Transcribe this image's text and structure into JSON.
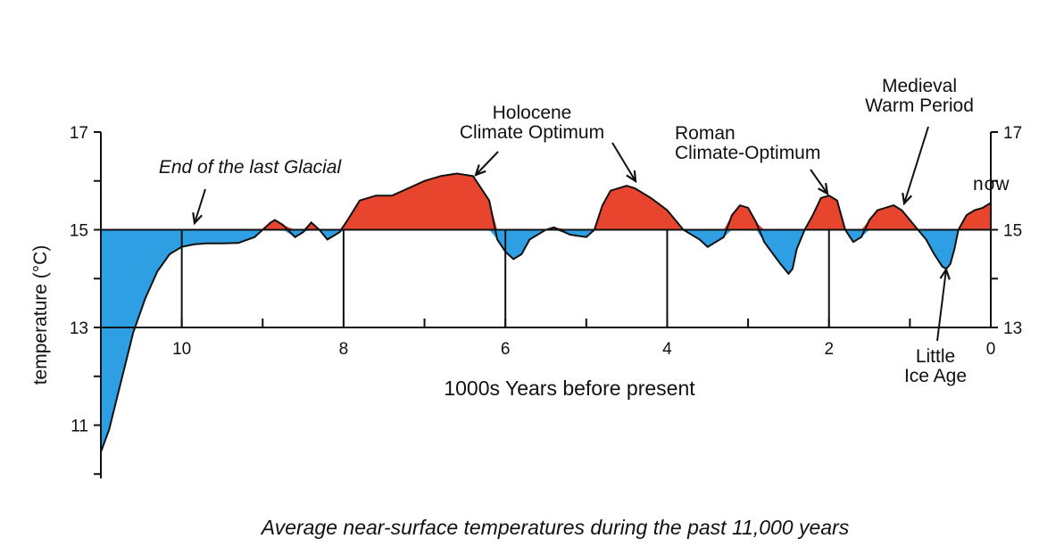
{
  "chart_data": {
    "type": "area",
    "title": "",
    "caption": "Average near-surface temperatures during the past 11,000 years",
    "xlabel": "1000s Years before present",
    "ylabel": "temperature (°C)",
    "baseline": 15,
    "xlim": [
      11,
      0
    ],
    "ylim": [
      10,
      17
    ],
    "x_ticks": [
      10,
      8,
      6,
      4,
      2,
      0
    ],
    "y_ticks_left": [
      17,
      15,
      13,
      11
    ],
    "y_ticks_right": [
      17,
      15,
      13
    ],
    "colors": {
      "above": "#e8452f",
      "below": "#2f9fe3",
      "line": "#111111"
    },
    "series": [
      {
        "x": [
          11.0,
          10.9,
          10.75,
          10.6,
          10.45,
          10.3,
          10.15,
          10.0,
          9.85,
          9.7,
          9.5,
          9.3,
          9.1,
          9.0,
          8.9,
          8.85,
          8.75,
          8.6,
          8.5,
          8.4,
          8.3,
          8.2,
          8.05,
          7.95,
          7.8,
          7.6,
          7.4,
          7.2,
          7.0,
          6.8,
          6.6,
          6.4,
          6.2,
          6.1,
          6.0,
          5.9,
          5.8,
          5.7,
          5.5,
          5.4,
          5.2,
          5.0,
          4.9,
          4.8,
          4.7,
          4.5,
          4.4,
          4.2,
          4.0,
          3.8,
          3.6,
          3.5,
          3.3,
          3.2,
          3.1,
          3.0,
          2.9,
          2.8,
          2.6,
          2.5,
          2.45,
          2.4,
          2.3,
          2.2,
          2.1,
          2.0,
          1.9,
          1.8,
          1.7,
          1.6,
          1.5,
          1.4,
          1.2,
          1.1,
          1.0,
          0.9,
          0.8,
          0.7,
          0.6,
          0.55,
          0.5,
          0.45,
          0.4,
          0.3,
          0.2,
          0.1,
          0.0
        ],
        "values": [
          10.45,
          10.9,
          11.9,
          12.9,
          13.6,
          14.15,
          14.5,
          14.65,
          14.7,
          14.72,
          14.72,
          14.73,
          14.85,
          15.0,
          15.15,
          15.2,
          15.1,
          14.85,
          14.95,
          15.15,
          15.0,
          14.8,
          14.95,
          15.2,
          15.6,
          15.7,
          15.7,
          15.85,
          16.0,
          16.1,
          16.15,
          16.1,
          15.6,
          14.8,
          14.55,
          14.4,
          14.5,
          14.8,
          15.0,
          15.05,
          14.9,
          14.85,
          15.0,
          15.5,
          15.8,
          15.9,
          15.85,
          15.65,
          15.4,
          15.0,
          14.8,
          14.65,
          14.85,
          15.3,
          15.5,
          15.45,
          15.15,
          14.75,
          14.3,
          14.1,
          14.2,
          14.6,
          15.0,
          15.3,
          15.65,
          15.7,
          15.6,
          15.0,
          14.75,
          14.85,
          15.2,
          15.4,
          15.5,
          15.4,
          15.2,
          15.0,
          14.8,
          14.5,
          14.25,
          14.2,
          14.3,
          14.6,
          15.0,
          15.3,
          15.4,
          15.45,
          15.55
        ]
      }
    ],
    "annotations": [
      {
        "id": "end-glacial",
        "lines": [
          "End of the last Glacial"
        ],
        "italic": true,
        "x": 10,
        "y": 15.0
      },
      {
        "id": "holocene",
        "lines": [
          "Holocene",
          "Climate Optimum"
        ],
        "italic": false,
        "x": 6.4,
        "y": 16.1
      },
      {
        "id": "roman",
        "lines": [
          "Roman",
          "Climate-Optimum"
        ],
        "italic": false,
        "x": 1.95,
        "y": 15.7
      },
      {
        "id": "medieval",
        "lines": [
          "Medieval",
          "Warm Period"
        ],
        "italic": false,
        "x": 1.0,
        "y": 15.5
      },
      {
        "id": "little-ice-age",
        "lines": [
          "Little",
          "Ice Age"
        ],
        "italic": false,
        "x": 0.5,
        "y": 14.2
      },
      {
        "id": "now",
        "lines": [
          "now"
        ],
        "italic": false,
        "x": 0.0,
        "y": 15.55
      }
    ]
  }
}
